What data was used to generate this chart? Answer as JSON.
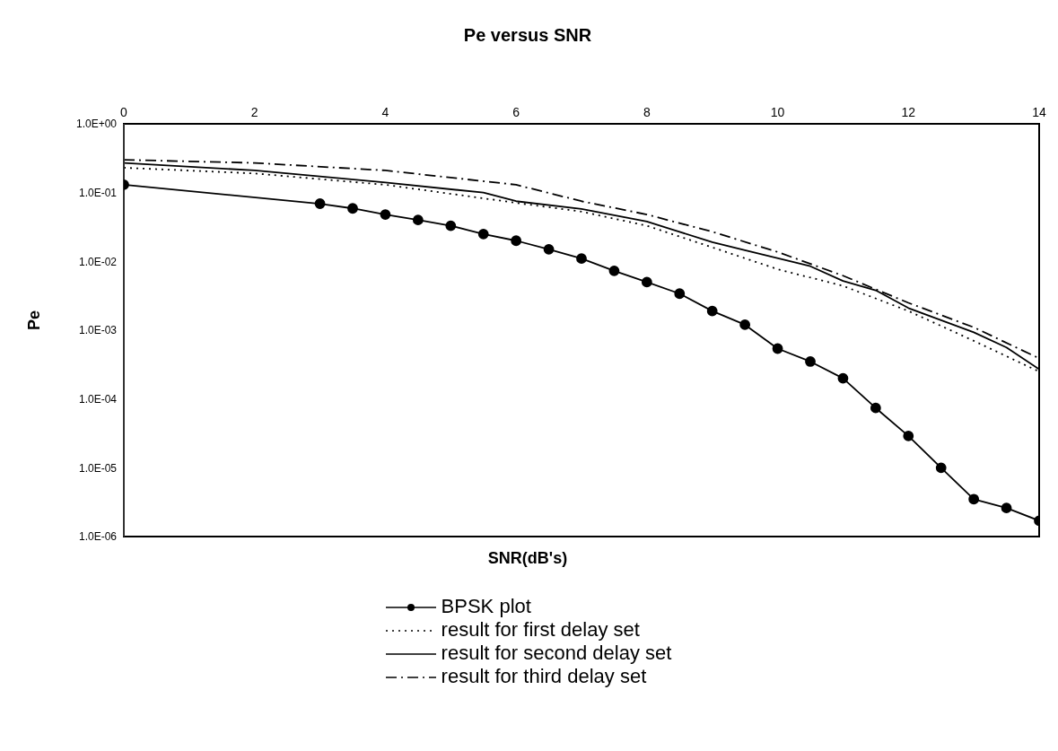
{
  "chart_data": {
    "type": "line",
    "title": "Pe versus SNR",
    "xlabel": "SNR(dB's)",
    "ylabel": "Pe",
    "log": "y",
    "grid": false,
    "legend": "bottom",
    "xlim": [
      0,
      14
    ],
    "xticks": [
      0,
      2,
      4,
      6,
      8,
      10,
      12,
      14
    ],
    "ylim": [
      1e-06,
      1
    ],
    "yticks": [
      {
        "value": 1,
        "label": "1.0E+00"
      },
      {
        "value": 0.1,
        "label": "1.0E-01"
      },
      {
        "value": 0.01,
        "label": "1.0E-02"
      },
      {
        "value": 0.001,
        "label": "1.0E-03"
      },
      {
        "value": 0.0001,
        "label": "1.0E-04"
      },
      {
        "value": 1e-05,
        "label": "1.0E-05"
      },
      {
        "value": 1e-06,
        "label": "1.0E-06"
      }
    ],
    "series": [
      {
        "name": "BPSK plot",
        "color": "#000000",
        "marker": "circle",
        "line_style": "solid",
        "x": [
          0,
          3,
          3.5,
          4,
          4.5,
          5,
          5.5,
          6,
          6.5,
          7,
          7.5,
          8,
          8.5,
          9,
          9.5,
          10,
          10.5,
          11,
          11.5,
          12,
          12.5,
          13,
          13.5,
          14
        ],
        "values": [
          0.13,
          0.069,
          0.059,
          0.048,
          0.04,
          0.033,
          0.025,
          0.02,
          0.015,
          0.011,
          0.0073,
          0.005,
          0.0034,
          0.0019,
          0.0012,
          0.00054,
          0.00035,
          0.0002,
          7.4e-05,
          2.9e-05,
          1e-05,
          3.5e-06,
          2.6e-06,
          1.7e-06
        ]
      },
      {
        "name": "result for first delay set",
        "color": "#000000",
        "marker": "none",
        "line_style": "dotted",
        "x": [
          0,
          2,
          4,
          6,
          7,
          8,
          9,
          10,
          11,
          12,
          13,
          14
        ],
        "values": [
          0.23,
          0.19,
          0.13,
          0.071,
          0.053,
          0.033,
          0.016,
          0.0077,
          0.0044,
          0.0019,
          0.0007,
          0.00025
        ]
      },
      {
        "name": "result for second delay set",
        "color": "#000000",
        "marker": "none",
        "line_style": "solid",
        "x": [
          0,
          2,
          4,
          5.5,
          6,
          7,
          8,
          9,
          9.5,
          10.5,
          11,
          11.5,
          12,
          13,
          13.5,
          14
        ],
        "values": [
          0.27,
          0.21,
          0.14,
          0.1,
          0.075,
          0.058,
          0.038,
          0.019,
          0.0145,
          0.0085,
          0.0052,
          0.0038,
          0.0021,
          0.00093,
          0.00056,
          0.00027
        ]
      },
      {
        "name": "result for third delay set",
        "color": "#000000",
        "marker": "none",
        "line_style": "dashed",
        "x": [
          0,
          2,
          4,
          6,
          7,
          8,
          9,
          10,
          11,
          12,
          13,
          14
        ],
        "values": [
          0.3,
          0.27,
          0.21,
          0.13,
          0.075,
          0.048,
          0.027,
          0.0137,
          0.0062,
          0.0025,
          0.0011,
          0.00039
        ]
      }
    ]
  }
}
